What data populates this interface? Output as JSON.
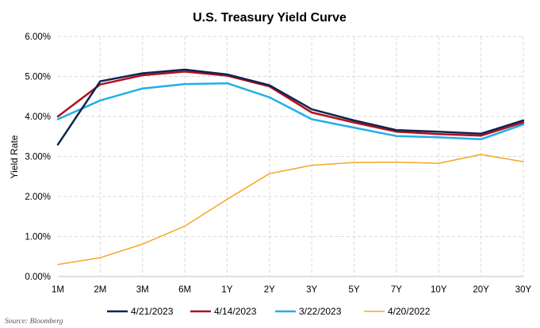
{
  "chart_data": {
    "type": "line",
    "title": "U.S. Treasury Yield Curve",
    "ylabel": "Yield Rate",
    "xlabel": "",
    "ylim": [
      0,
      6
    ],
    "yticks": [
      "0.00%",
      "1.00%",
      "2.00%",
      "3.00%",
      "4.00%",
      "5.00%",
      "6.00%"
    ],
    "categories": [
      "1M",
      "2M",
      "3M",
      "6M",
      "1Y",
      "2Y",
      "3Y",
      "5Y",
      "7Y",
      "10Y",
      "20Y",
      "30Y"
    ],
    "grid": true,
    "legend_position": "bottom",
    "series": [
      {
        "name": "4/21/2023",
        "color": "#0d2353",
        "width": 2.5,
        "values": [
          3.3,
          4.88,
          5.08,
          5.17,
          5.05,
          4.78,
          4.18,
          3.9,
          3.66,
          3.62,
          3.57,
          3.9
        ]
      },
      {
        "name": "4/14/2023",
        "color": "#b3101c",
        "width": 2.5,
        "values": [
          4.0,
          4.8,
          5.03,
          5.12,
          5.02,
          4.75,
          4.1,
          3.85,
          3.62,
          3.56,
          3.52,
          3.85
        ]
      },
      {
        "name": "3/22/2023",
        "color": "#22aee8",
        "width": 2.5,
        "values": [
          3.93,
          4.4,
          4.7,
          4.81,
          4.83,
          4.48,
          3.93,
          3.72,
          3.51,
          3.48,
          3.43,
          3.8
        ]
      },
      {
        "name": "4/20/2022",
        "color": "#f5a623",
        "width": 1.5,
        "values": [
          0.3,
          0.47,
          0.81,
          1.26,
          1.93,
          2.57,
          2.78,
          2.85,
          2.86,
          2.83,
          3.05,
          2.87
        ]
      }
    ]
  },
  "source": "Source: Bloomberg"
}
